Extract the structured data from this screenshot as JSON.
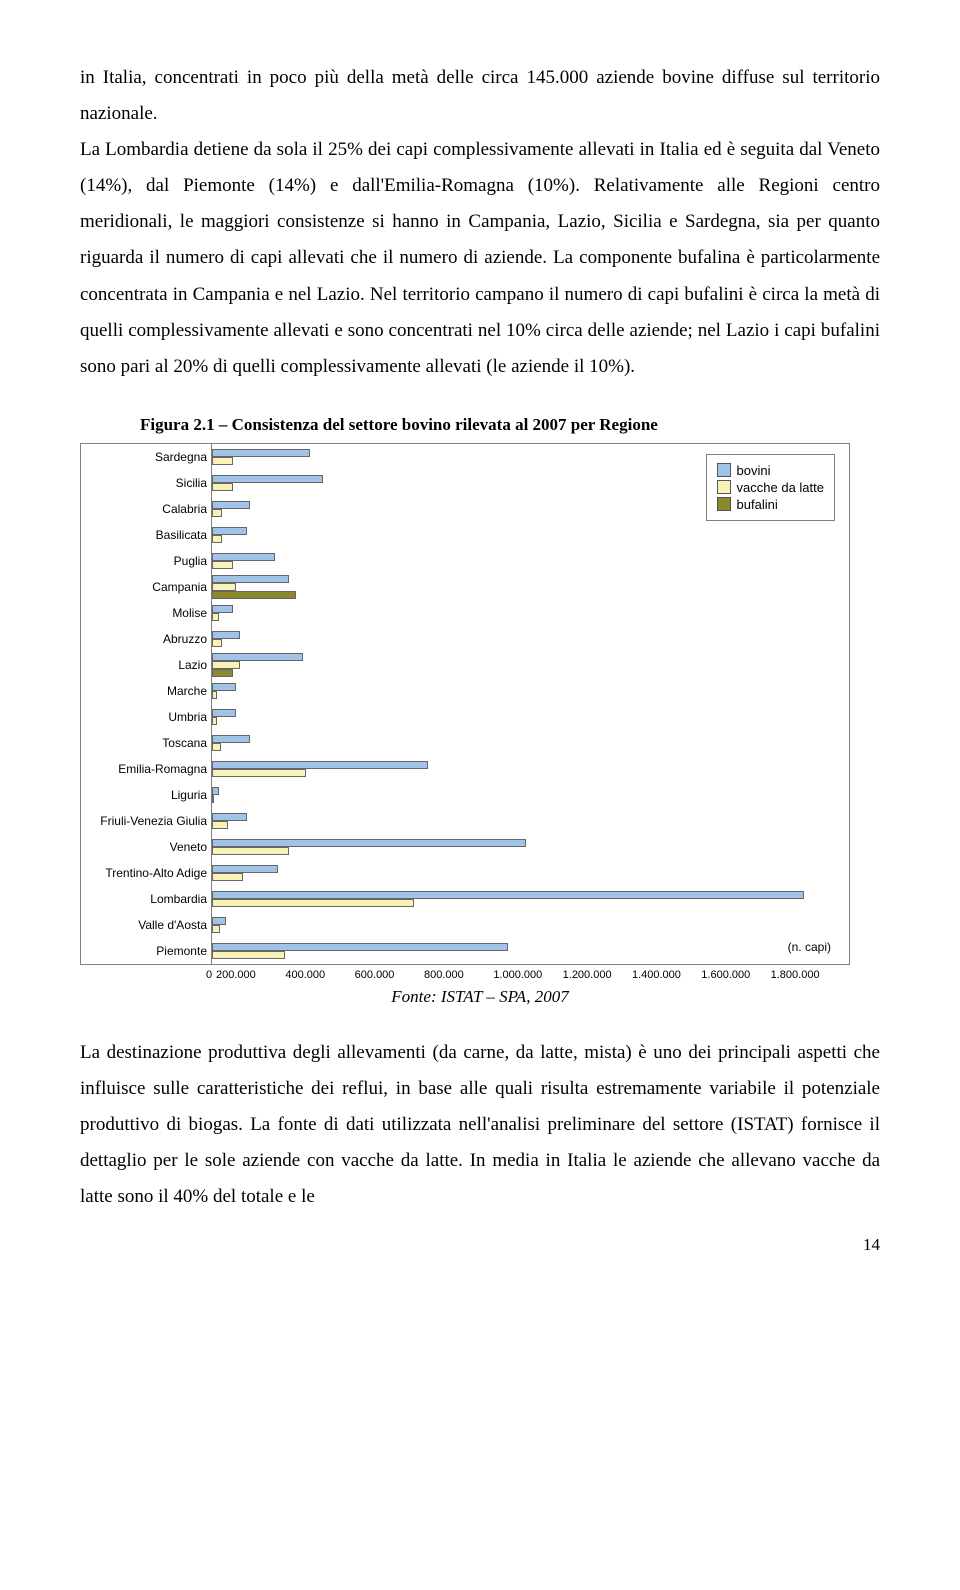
{
  "para1": "in Italia, concentrati in poco più della metà delle circa 145.000 aziende bovine diffuse sul territorio nazionale.",
  "para2": "La Lombardia detiene da sola il 25% dei capi complessivamente allevati in Italia ed è seguita dal Veneto (14%), dal Piemonte (14%) e dall'Emilia-Romagna (10%). Relativamente alle Regioni centro meridionali, le maggiori consistenze si hanno in Campania, Lazio, Sicilia e Sardegna, sia per quanto riguarda il numero di capi allevati che il numero di aziende. La componente bufalina è particolarmente concentrata in Campania e nel Lazio. Nel territorio campano il numero di capi bufalini è circa la metà di quelli complessivamente allevati e sono concentrati nel 10% circa delle aziende; nel Lazio i capi bufalini sono pari al 20% di quelli complessivamente allevati (le aziende il 10%).",
  "fig_title": "Figura 2.1 – Consistenza del settore bovino rilevata al 2007 per Regione",
  "chart": {
    "type": "bar",
    "x_max": 1800000,
    "x_ticks": [
      "0",
      "200.000",
      "400.000",
      "600.000",
      "800.000",
      "1.000.000",
      "1.200.000",
      "1.400.000",
      "1.600.000",
      "1.800.000"
    ],
    "legend": {
      "s1": "bovini",
      "s2": "vacche da latte",
      "s3": "bufalini"
    },
    "colors": {
      "bovini": "#a0c4e8",
      "vacche": "#f8f2b6",
      "bufalini": "#8a8a2c",
      "border": "#808080",
      "bg": "#ffffff"
    },
    "ncapi_label": "(n. capi)",
    "regions": [
      {
        "name": "Sardegna",
        "bovini": 280000,
        "vacche": 60000,
        "bufalini": 0
      },
      {
        "name": "Sicilia",
        "bovini": 320000,
        "vacche": 60000,
        "bufalini": 0
      },
      {
        "name": "Calabria",
        "bovini": 110000,
        "vacche": 30000,
        "bufalini": 0
      },
      {
        "name": "Basilicata",
        "bovini": 100000,
        "vacche": 30000,
        "bufalini": 0
      },
      {
        "name": "Puglia",
        "bovini": 180000,
        "vacche": 60000,
        "bufalini": 0
      },
      {
        "name": "Campania",
        "bovini": 220000,
        "vacche": 70000,
        "bufalini": 240000
      },
      {
        "name": "Molise",
        "bovini": 60000,
        "vacche": 20000,
        "bufalini": 0
      },
      {
        "name": "Abruzzo",
        "bovini": 80000,
        "vacche": 30000,
        "bufalini": 0
      },
      {
        "name": "Lazio",
        "bovini": 260000,
        "vacche": 80000,
        "bufalini": 60000
      },
      {
        "name": "Marche",
        "bovini": 70000,
        "vacche": 15000,
        "bufalini": 0
      },
      {
        "name": "Umbria",
        "bovini": 70000,
        "vacche": 15000,
        "bufalini": 0
      },
      {
        "name": "Toscana",
        "bovini": 110000,
        "vacche": 25000,
        "bufalini": 0
      },
      {
        "name": "Emilia-Romagna",
        "bovini": 620000,
        "vacche": 270000,
        "bufalini": 0
      },
      {
        "name": "Liguria",
        "bovini": 20000,
        "vacche": 6000,
        "bufalini": 0
      },
      {
        "name": "Friuli-Venezia Giulia",
        "bovini": 100000,
        "vacche": 45000,
        "bufalini": 0
      },
      {
        "name": "Veneto",
        "bovini": 900000,
        "vacche": 220000,
        "bufalini": 0
      },
      {
        "name": "Trentino-Alto Adige",
        "bovini": 190000,
        "vacche": 90000,
        "bufalini": 0
      },
      {
        "name": "Lombardia",
        "bovini": 1700000,
        "vacche": 580000,
        "bufalini": 0
      },
      {
        "name": "Valle d'Aosta",
        "bovini": 40000,
        "vacche": 22000,
        "bufalini": 0
      },
      {
        "name": "Piemonte",
        "bovini": 850000,
        "vacche": 210000,
        "bufalini": 0
      }
    ]
  },
  "fonte": "Fonte: ISTAT – SPA, 2007",
  "para3": "La destinazione produttiva degli allevamenti (da carne, da latte, mista) è uno dei principali aspetti che influisce sulle caratteristiche dei reflui, in base alle quali risulta estremamente variabile il potenziale produttivo di biogas. La fonte di dati utilizzata nell'analisi preliminare del settore (ISTAT) fornisce il dettaglio per le sole aziende con vacche da latte. In media in Italia le aziende che allevano vacche da latte sono il 40% del totale e le",
  "page_num": "14"
}
